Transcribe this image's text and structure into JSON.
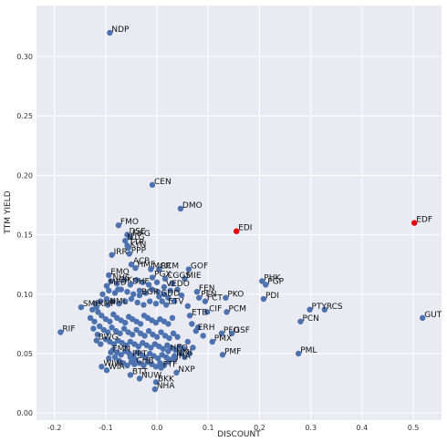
{
  "chart_data": {
    "type": "scatter",
    "title": "",
    "xlabel": "DISCOUNT",
    "ylabel": "TTM YIELD",
    "xlim": [
      -0.235,
      0.555
    ],
    "ylim": [
      -0.006,
      0.343
    ],
    "xticks": [
      "-0.2",
      "-0.1",
      "0.0",
      "0.1",
      "0.2",
      "0.3",
      "0.4",
      "0.5"
    ],
    "xtick_values": [
      -0.2,
      -0.1,
      0.0,
      0.1,
      0.2,
      0.3,
      0.4,
      0.5
    ],
    "yticks": [
      "0.00",
      "0.05",
      "0.10",
      "0.15",
      "0.20",
      "0.25",
      "0.30"
    ],
    "ytick_values": [
      0.0,
      0.05,
      0.1,
      0.15,
      0.2,
      0.25,
      0.3
    ],
    "grid": true,
    "colors": {
      "default": "#4c72b0",
      "highlight": "#e8000b",
      "background": "#eaeaf2"
    },
    "points": [
      {
        "label": "NDP",
        "x": -0.092,
        "y": 0.32
      },
      {
        "label": "CEN",
        "x": -0.009,
        "y": 0.192
      },
      {
        "label": "DMO",
        "x": 0.046,
        "y": 0.172
      },
      {
        "label": "EDI",
        "x": 0.155,
        "y": 0.153,
        "highlight": true
      },
      {
        "label": "EDF",
        "x": 0.502,
        "y": 0.16,
        "highlight": true
      },
      {
        "label": "FMO",
        "x": -0.075,
        "y": 0.158
      },
      {
        "label": "DSE",
        "x": -0.058,
        "y": 0.15
      },
      {
        "label": "FIFG",
        "x": -0.052,
        "y": 0.148
      },
      {
        "label": "NTG",
        "x": -0.062,
        "y": 0.145
      },
      {
        "label": "TTP",
        "x": -0.058,
        "y": 0.141
      },
      {
        "label": "KYN",
        "x": -0.056,
        "y": 0.139
      },
      {
        "label": "IRR",
        "x": -0.088,
        "y": 0.133
      },
      {
        "label": "PPP",
        "x": -0.054,
        "y": 0.134
      },
      {
        "label": "ACP",
        "x": -0.05,
        "y": 0.125
      },
      {
        "label": "HMF",
        "x": -0.042,
        "y": 0.122
      },
      {
        "label": "MCR",
        "x": -0.012,
        "y": 0.121
      },
      {
        "label": "RCM",
        "x": 0.004,
        "y": 0.121
      },
      {
        "label": "GOF",
        "x": 0.062,
        "y": 0.121
      },
      {
        "label": "EMO",
        "x": -0.094,
        "y": 0.116
      },
      {
        "label": "PGX",
        "x": -0.009,
        "y": 0.114
      },
      {
        "label": "CGGS",
        "x": 0.016,
        "y": 0.113
      },
      {
        "label": "MIE",
        "x": 0.054,
        "y": 0.113
      },
      {
        "label": "NHS",
        "x": -0.09,
        "y": 0.111
      },
      {
        "label": "CIK",
        "x": -0.078,
        "y": 0.109
      },
      {
        "label": "MFD",
        "x": -0.098,
        "y": 0.107
      },
      {
        "label": "DHF",
        "x": -0.052,
        "y": 0.108
      },
      {
        "label": "VEDO",
        "x": 0.014,
        "y": 0.106
      },
      {
        "label": "PHK",
        "x": 0.205,
        "y": 0.111
      },
      {
        "label": "PGP",
        "x": 0.212,
        "y": 0.108
      },
      {
        "label": "FEN",
        "x": 0.078,
        "y": 0.102
      },
      {
        "label": "PFN",
        "x": 0.082,
        "y": 0.097
      },
      {
        "label": "PKO",
        "x": 0.134,
        "y": 0.097
      },
      {
        "label": "PDI",
        "x": 0.208,
        "y": 0.096
      },
      {
        "label": "BGR",
        "x": -0.034,
        "y": 0.099
      },
      {
        "label": "GDD",
        "x": 0.004,
        "y": 0.098
      },
      {
        "label": "FCT",
        "x": 0.094,
        "y": 0.094
      },
      {
        "label": "SMF",
        "x": -0.148,
        "y": 0.089
      },
      {
        "label": "KMF",
        "x": -0.118,
        "y": 0.089
      },
      {
        "label": "NML",
        "x": -0.096,
        "y": 0.091
      },
      {
        "label": "ETV",
        "x": 0.018,
        "y": 0.091
      },
      {
        "label": "PTY",
        "x": 0.298,
        "y": 0.087
      },
      {
        "label": "RCS",
        "x": 0.327,
        "y": 0.087
      },
      {
        "label": "PCM",
        "x": 0.136,
        "y": 0.085
      },
      {
        "label": "CIF",
        "x": 0.098,
        "y": 0.085
      },
      {
        "label": "ETB",
        "x": 0.064,
        "y": 0.082
      },
      {
        "label": "GUT",
        "x": 0.518,
        "y": 0.08
      },
      {
        "label": "PCN",
        "x": 0.28,
        "y": 0.077
      },
      {
        "label": "RIF",
        "x": -0.188,
        "y": 0.068
      },
      {
        "label": "BWG",
        "x": -0.118,
        "y": 0.061
      },
      {
        "label": "ERH",
        "x": 0.076,
        "y": 0.069
      },
      {
        "label": "PFO",
        "x": 0.126,
        "y": 0.067
      },
      {
        "label": "GSF",
        "x": 0.146,
        "y": 0.067
      },
      {
        "label": "PMX",
        "x": 0.108,
        "y": 0.06
      },
      {
        "label": "PML",
        "x": 0.276,
        "y": 0.05
      },
      {
        "label": "PMF",
        "x": 0.128,
        "y": 0.049
      },
      {
        "label": "FMN",
        "x": -0.09,
        "y": 0.051
      },
      {
        "label": "HEQ",
        "x": 0.022,
        "y": 0.052
      },
      {
        "label": "NMI",
        "x": 0.034,
        "y": 0.048
      },
      {
        "label": "PPT",
        "x": -0.052,
        "y": 0.047
      },
      {
        "label": "JHA",
        "x": 0.034,
        "y": 0.045
      },
      {
        "label": "WIW",
        "x": -0.108,
        "y": 0.039
      },
      {
        "label": "WIA",
        "x": -0.098,
        "y": 0.036
      },
      {
        "label": "CHB",
        "x": -0.044,
        "y": 0.041
      },
      {
        "label": "NXP",
        "x": 0.038,
        "y": 0.034
      },
      {
        "label": "FTF",
        "x": 0.008,
        "y": 0.038
      },
      {
        "label": "BTT",
        "x": -0.052,
        "y": 0.032
      },
      {
        "label": "NUW",
        "x": -0.034,
        "y": 0.029
      },
      {
        "label": "BKK",
        "x": -0.002,
        "y": 0.026
      },
      {
        "label": "NHA",
        "x": -0.004,
        "y": 0.02
      }
    ],
    "unlabeled_points": [
      [
        -0.115,
        0.085
      ],
      [
        -0.108,
        0.082
      ],
      [
        -0.1,
        0.079
      ],
      [
        -0.092,
        0.077
      ],
      [
        -0.085,
        0.083
      ],
      [
        -0.078,
        0.08
      ],
      [
        -0.07,
        0.078
      ],
      [
        -0.062,
        0.076
      ],
      [
        -0.055,
        0.081
      ],
      [
        -0.048,
        0.079
      ],
      [
        -0.04,
        0.077
      ],
      [
        -0.032,
        0.075
      ],
      [
        -0.025,
        0.082
      ],
      [
        -0.018,
        0.08
      ],
      [
        -0.01,
        0.078
      ],
      [
        -0.002,
        0.076
      ],
      [
        0.006,
        0.079
      ],
      [
        0.014,
        0.077
      ],
      [
        0.022,
        0.075
      ],
      [
        0.03,
        0.08
      ],
      [
        -0.112,
        0.073
      ],
      [
        -0.104,
        0.07
      ],
      [
        -0.096,
        0.068
      ],
      [
        -0.088,
        0.072
      ],
      [
        -0.08,
        0.069
      ],
      [
        -0.072,
        0.067
      ],
      [
        -0.064,
        0.071
      ],
      [
        -0.056,
        0.068
      ],
      [
        -0.048,
        0.066
      ],
      [
        -0.04,
        0.07
      ],
      [
        -0.032,
        0.067
      ],
      [
        -0.024,
        0.065
      ],
      [
        -0.016,
        0.069
      ],
      [
        -0.008,
        0.066
      ],
      [
        0.0,
        0.064
      ],
      [
        0.008,
        0.068
      ],
      [
        0.016,
        0.065
      ],
      [
        0.024,
        0.063
      ],
      [
        0.032,
        0.067
      ],
      [
        0.04,
        0.064
      ],
      [
        -0.1,
        0.062
      ],
      [
        -0.092,
        0.06
      ],
      [
        -0.084,
        0.058
      ],
      [
        -0.076,
        0.061
      ],
      [
        -0.068,
        0.059
      ],
      [
        -0.06,
        0.057
      ],
      [
        -0.052,
        0.06
      ],
      [
        -0.044,
        0.058
      ],
      [
        -0.036,
        0.056
      ],
      [
        -0.028,
        0.059
      ],
      [
        -0.02,
        0.057
      ],
      [
        -0.012,
        0.055
      ],
      [
        -0.004,
        0.058
      ],
      [
        0.004,
        0.056
      ],
      [
        0.012,
        0.054
      ],
      [
        0.02,
        0.057
      ],
      [
        0.028,
        0.055
      ],
      [
        0.036,
        0.053
      ],
      [
        0.044,
        0.056
      ],
      [
        0.052,
        0.054
      ],
      [
        -0.086,
        0.053
      ],
      [
        -0.078,
        0.051
      ],
      [
        -0.07,
        0.049
      ],
      [
        -0.062,
        0.052
      ],
      [
        -0.054,
        0.05
      ],
      [
        -0.046,
        0.048
      ],
      [
        -0.038,
        0.051
      ],
      [
        -0.03,
        0.049
      ],
      [
        -0.022,
        0.047
      ],
      [
        -0.014,
        0.05
      ],
      [
        -0.006,
        0.048
      ],
      [
        0.002,
        0.046
      ],
      [
        0.01,
        0.049
      ],
      [
        0.018,
        0.047
      ],
      [
        0.026,
        0.045
      ],
      [
        0.046,
        0.05
      ],
      [
        0.054,
        0.047
      ],
      [
        -0.074,
        0.044
      ],
      [
        -0.066,
        0.042
      ],
      [
        -0.058,
        0.04
      ],
      [
        -0.05,
        0.043
      ],
      [
        -0.042,
        0.045
      ],
      [
        -0.034,
        0.042
      ],
      [
        -0.026,
        0.04
      ],
      [
        -0.018,
        0.043
      ],
      [
        -0.01,
        0.041
      ],
      [
        -0.002,
        0.039
      ],
      [
        0.006,
        0.042
      ],
      [
        0.014,
        0.04
      ],
      [
        0.022,
        0.043
      ],
      [
        -0.12,
        0.092
      ],
      [
        -0.11,
        0.094
      ],
      [
        -0.098,
        0.096
      ],
      [
        -0.086,
        0.094
      ],
      [
        -0.074,
        0.092
      ],
      [
        -0.062,
        0.094
      ],
      [
        -0.05,
        0.096
      ],
      [
        -0.038,
        0.093
      ],
      [
        -0.026,
        0.091
      ],
      [
        -0.014,
        0.094
      ],
      [
        -0.002,
        0.092
      ],
      [
        0.01,
        0.094
      ],
      [
        0.022,
        0.097
      ],
      [
        0.034,
        0.094
      ],
      [
        -0.126,
        0.087
      ],
      [
        -0.13,
        0.08
      ],
      [
        -0.122,
        0.077
      ],
      [
        -0.106,
        0.1
      ],
      [
        -0.094,
        0.103
      ],
      [
        -0.082,
        0.101
      ],
      [
        -0.07,
        0.104
      ],
      [
        -0.058,
        0.102
      ],
      [
        -0.046,
        0.1
      ],
      [
        -0.034,
        0.103
      ],
      [
        -0.022,
        0.101
      ],
      [
        -0.01,
        0.104
      ],
      [
        0.002,
        0.102
      ],
      [
        0.014,
        0.1
      ],
      [
        0.026,
        0.103
      ],
      [
        0.048,
        0.099
      ],
      [
        -0.04,
        0.112
      ],
      [
        -0.028,
        0.11
      ],
      [
        -0.016,
        0.108
      ],
      [
        0.0,
        0.11
      ],
      [
        0.03,
        0.109
      ],
      [
        0.04,
        0.104
      ],
      [
        -0.064,
        0.112
      ],
      [
        -0.076,
        0.104
      ],
      [
        0.06,
        0.09
      ],
      [
        0.068,
        0.075
      ],
      [
        0.08,
        0.072
      ],
      [
        0.09,
        0.065
      ],
      [
        0.06,
        0.06
      ],
      [
        0.07,
        0.055
      ],
      [
        0.064,
        0.05
      ],
      [
        -0.11,
        0.058
      ],
      [
        -0.116,
        0.066
      ],
      [
        -0.124,
        0.071
      ],
      [
        -0.094,
        0.046
      ],
      [
        -0.082,
        0.047
      ]
    ]
  }
}
